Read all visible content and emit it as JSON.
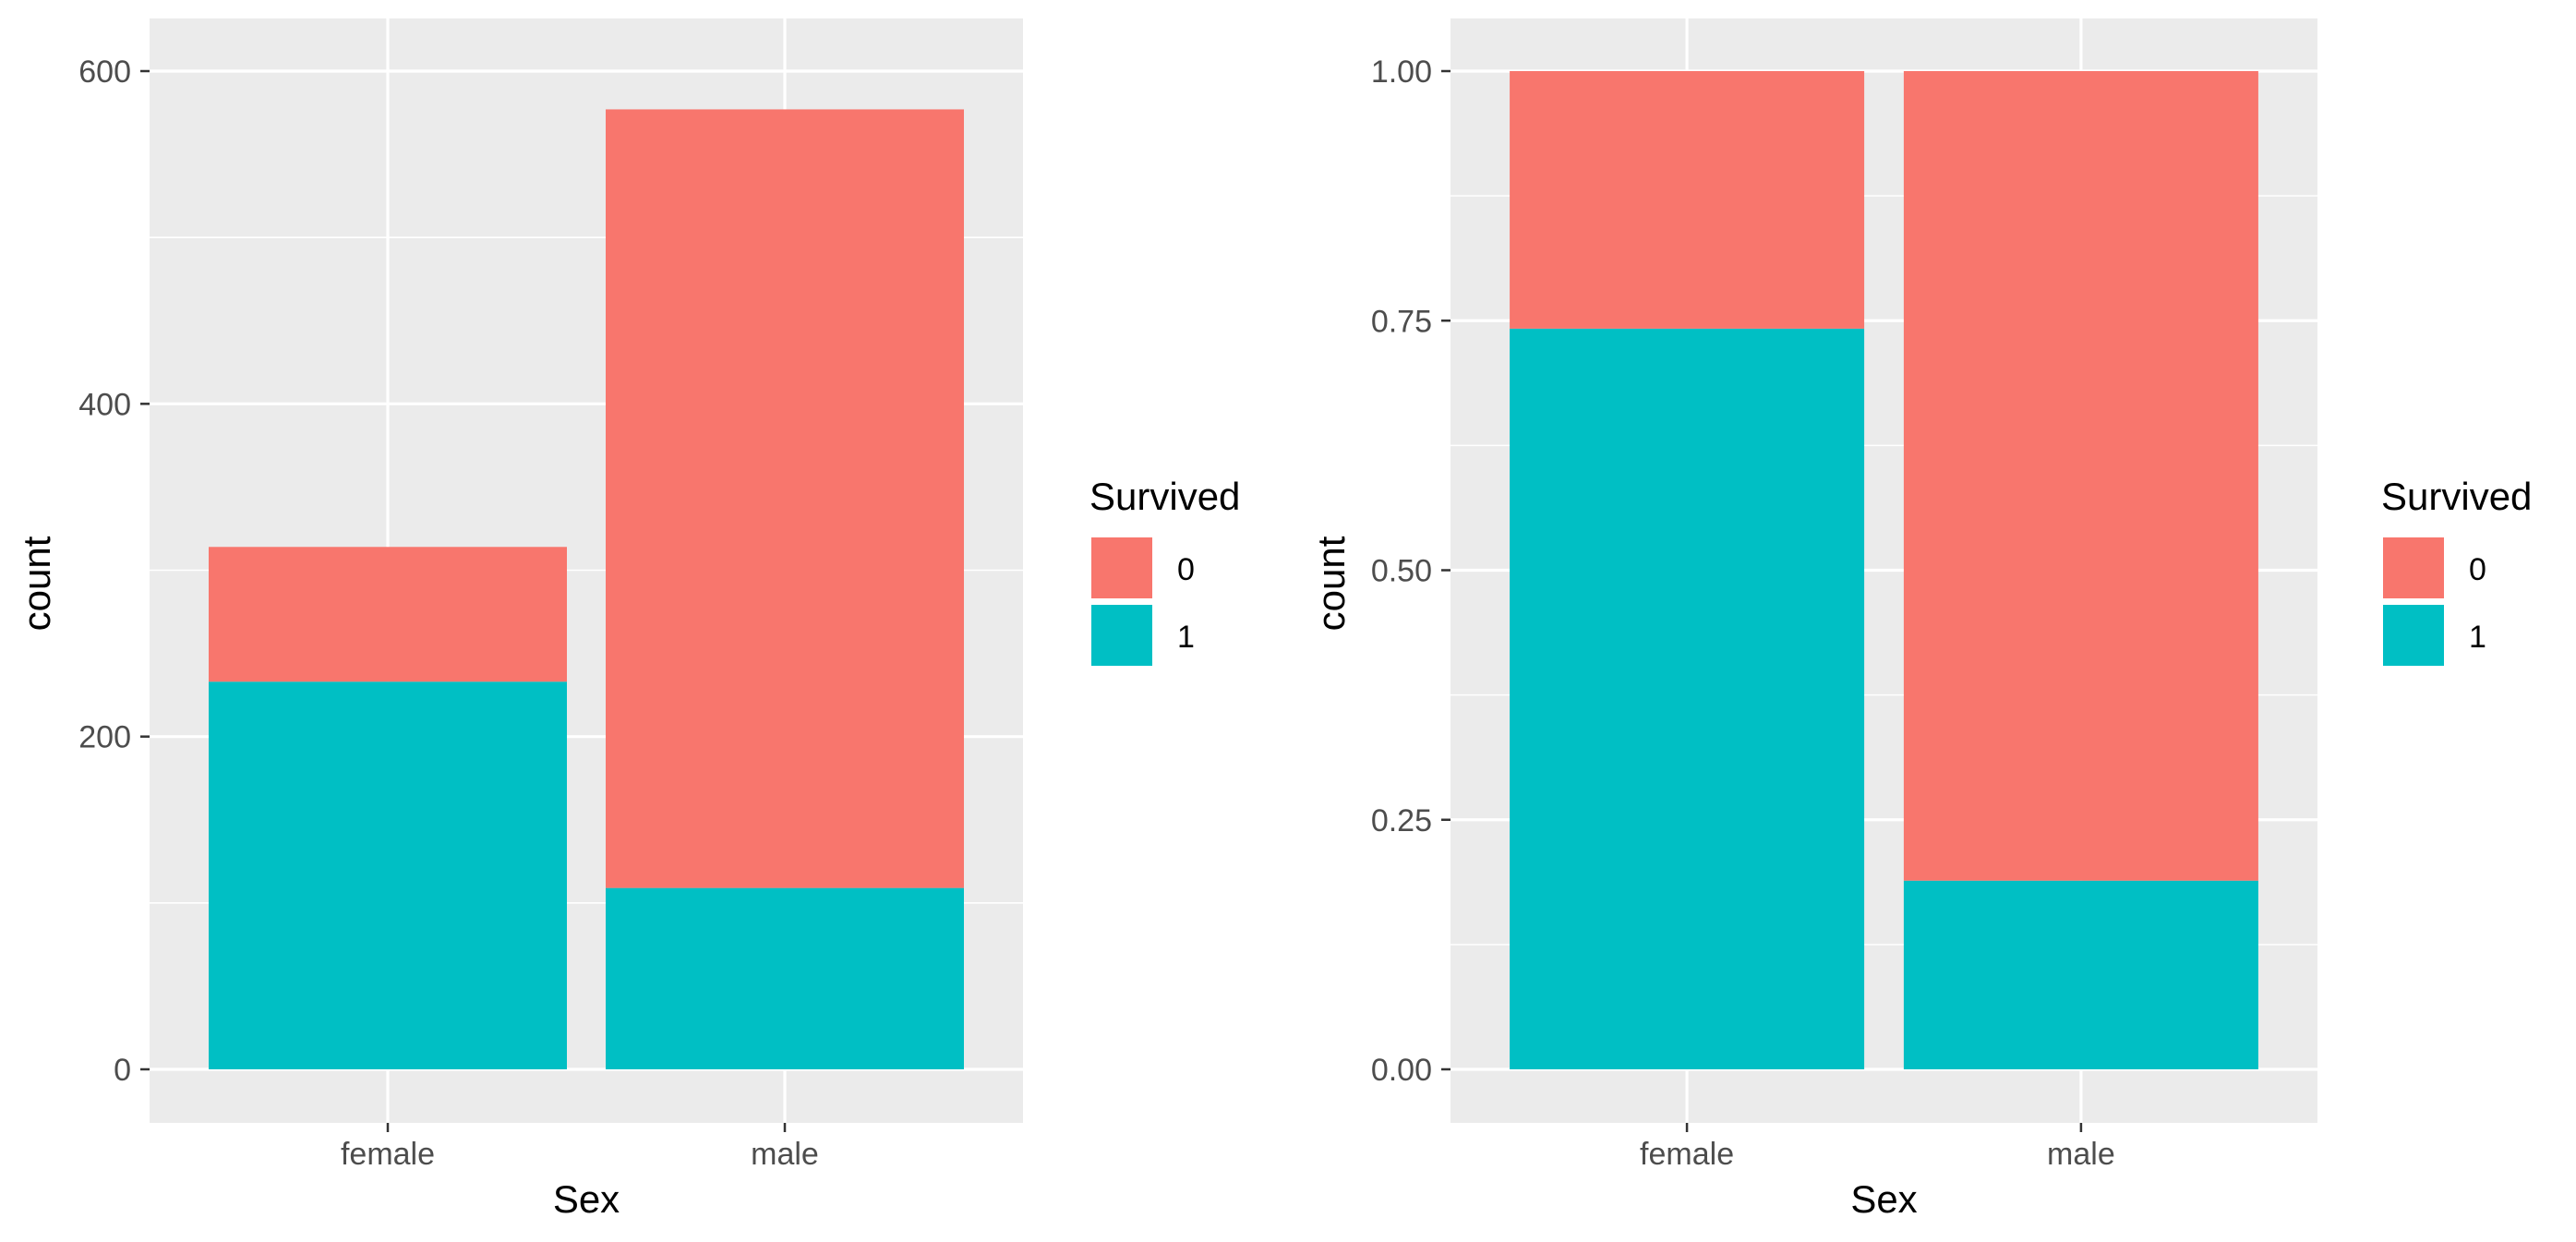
{
  "chart_data": [
    {
      "type": "bar",
      "stacked": true,
      "position": "stack",
      "categories": [
        "female",
        "male"
      ],
      "series": [
        {
          "name": "0",
          "color": "#F8766D",
          "values": [
            81,
            468
          ]
        },
        {
          "name": "1",
          "color": "#00BFC4",
          "values": [
            233,
            109
          ]
        }
      ],
      "xlabel": "Sex",
      "ylabel": "count",
      "ylim": [
        0,
        600
      ],
      "yticks": [
        0,
        200,
        400,
        600
      ],
      "ytick_labels": [
        "0",
        "200",
        "400",
        "600"
      ],
      "legend": {
        "title": "Survived",
        "labels": [
          "0",
          "1"
        ],
        "placement": "right"
      },
      "grid": true
    },
    {
      "type": "bar",
      "stacked": true,
      "position": "fill",
      "categories": [
        "female",
        "male"
      ],
      "series": [
        {
          "name": "0",
          "color": "#F8766D",
          "values": [
            0.258,
            0.811
          ]
        },
        {
          "name": "1",
          "color": "#00BFC4",
          "values": [
            0.742,
            0.189
          ]
        }
      ],
      "xlabel": "Sex",
      "ylabel": "count",
      "ylim": [
        0,
        1
      ],
      "yticks": [
        0,
        0.25,
        0.5,
        0.75,
        1
      ],
      "ytick_labels": [
        "0.00",
        "0.25",
        "0.50",
        "0.75",
        "1.00"
      ],
      "legend": {
        "title": "Survived",
        "labels": [
          "0",
          "1"
        ],
        "placement": "right"
      },
      "grid": true
    }
  ]
}
